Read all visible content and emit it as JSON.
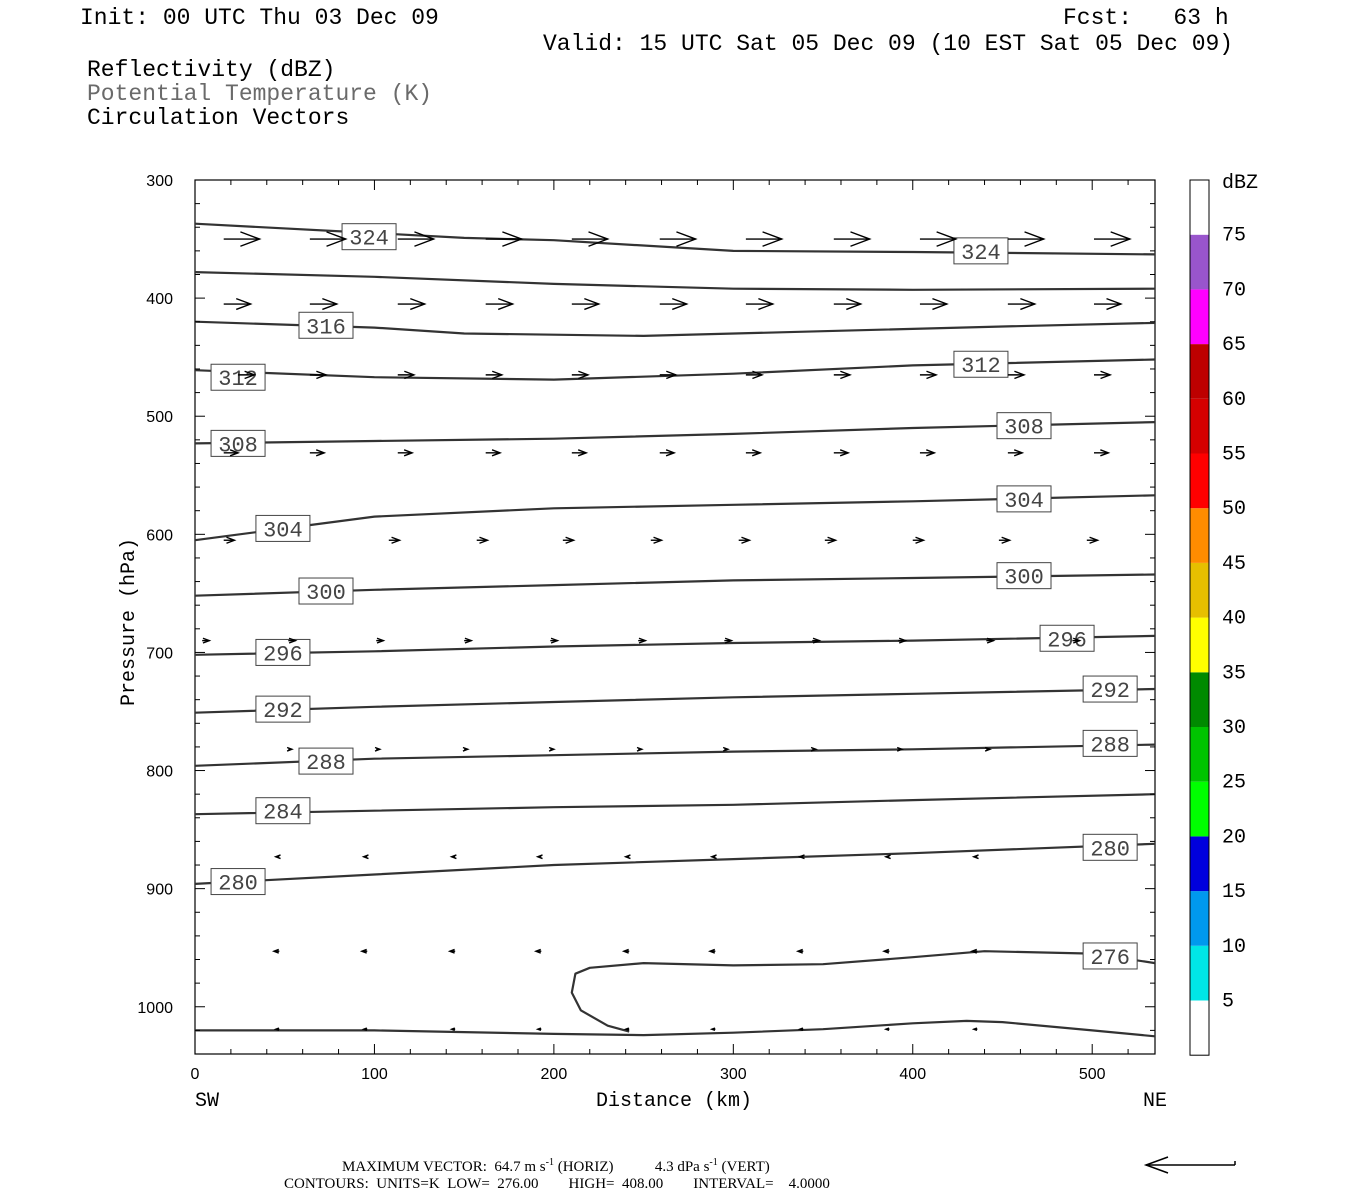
{
  "header": {
    "init": "Init: 00 UTC Thu 03 Dec 09",
    "fcst": "Fcst:   63 h",
    "valid": "Valid: 15 UTC Sat 05 Dec 09 (10 EST Sat 05 Dec 09)",
    "fields": [
      "Reflectivity (dBZ)",
      "Potential Temperature (K)",
      "Circulation Vectors"
    ]
  },
  "footer": {
    "max_vector": "MAXIMUM VECTOR:  64.7 m s",
    "horiz": "(HORIZ)",
    "vert_value": "4.3 dPa s",
    "vert": "(VERT)",
    "exponent": "-1",
    "contours": "CONTOURS:  UNITS=K  LOW=  276.00        HIGH=  408.00        INTERVAL=    4.0000"
  },
  "colorbar": {
    "unit": "dBZ",
    "levels": [
      5,
      10,
      15,
      20,
      25,
      30,
      35,
      40,
      45,
      50,
      55,
      60,
      65,
      70,
      75
    ],
    "colors": [
      "#ffffff",
      "#00e6e6",
      "#0099ee",
      "#0000dd",
      "#00ff00",
      "#00c400",
      "#008a00",
      "#ffff00",
      "#e6bf00",
      "#ff8c00",
      "#ff0000",
      "#d50000",
      "#bd0000",
      "#ff00ff",
      "#9955cc",
      "#ffffff"
    ]
  },
  "chart_data": {
    "type": "cross-section",
    "xlabel": "Distance (km)",
    "ylabel": "Pressure (hPa)",
    "x_ticks": [
      0,
      100,
      200,
      300,
      400,
      500
    ],
    "y_ticks": [
      300,
      400,
      500,
      600,
      700,
      800,
      900,
      1000
    ],
    "xlim": [
      0,
      535
    ],
    "ylim": [
      300,
      1040
    ],
    "x_end_labels": {
      "left": "SW",
      "right": "NE"
    },
    "contours": [
      {
        "level": 324,
        "points": [
          [
            0,
            337
          ],
          [
            100,
            345
          ],
          [
            150,
            349
          ],
          [
            200,
            351
          ],
          [
            300,
            360
          ],
          [
            400,
            361
          ],
          [
            535,
            363
          ]
        ],
        "labels": [
          [
            97,
            348
          ],
          [
            438,
            360
          ]
        ]
      },
      {
        "level": 320,
        "points": [
          [
            0,
            378
          ],
          [
            100,
            382
          ],
          [
            200,
            388
          ],
          [
            300,
            392
          ],
          [
            400,
            393
          ],
          [
            535,
            392
          ]
        ],
        "labels": []
      },
      {
        "level": 316,
        "points": [
          [
            0,
            420
          ],
          [
            100,
            425
          ],
          [
            150,
            430
          ],
          [
            250,
            432
          ],
          [
            350,
            428
          ],
          [
            450,
            424
          ],
          [
            535,
            421
          ]
        ],
        "labels": [
          [
            73,
            423
          ]
        ]
      },
      {
        "level": 312,
        "points": [
          [
            0,
            461
          ],
          [
            100,
            467
          ],
          [
            200,
            469
          ],
          [
            300,
            464
          ],
          [
            400,
            457
          ],
          [
            535,
            452
          ]
        ],
        "labels": [
          [
            24,
            467
          ],
          [
            438,
            456
          ]
        ]
      },
      {
        "level": 308,
        "points": [
          [
            0,
            523
          ],
          [
            100,
            521
          ],
          [
            200,
            519
          ],
          [
            300,
            515
          ],
          [
            400,
            510
          ],
          [
            535,
            505
          ]
        ],
        "labels": [
          [
            24,
            523
          ],
          [
            462,
            508
          ]
        ]
      },
      {
        "level": 304,
        "points": [
          [
            0,
            605
          ],
          [
            50,
            595
          ],
          [
            100,
            585
          ],
          [
            200,
            578
          ],
          [
            300,
            575
          ],
          [
            400,
            572
          ],
          [
            535,
            567
          ]
        ],
        "labels": [
          [
            49,
            595
          ],
          [
            462,
            570
          ]
        ]
      },
      {
        "level": 300,
        "points": [
          [
            0,
            652
          ],
          [
            100,
            647
          ],
          [
            200,
            643
          ],
          [
            300,
            639
          ],
          [
            400,
            637
          ],
          [
            535,
            634
          ]
        ],
        "labels": [
          [
            73,
            648
          ],
          [
            462,
            635
          ]
        ]
      },
      {
        "level": 296,
        "points": [
          [
            0,
            702
          ],
          [
            100,
            699
          ],
          [
            200,
            695
          ],
          [
            300,
            692
          ],
          [
            400,
            690
          ],
          [
            535,
            686
          ]
        ],
        "labels": [
          [
            49,
            700
          ],
          [
            486,
            688
          ]
        ]
      },
      {
        "level": 292,
        "points": [
          [
            0,
            751
          ],
          [
            100,
            746
          ],
          [
            200,
            742
          ],
          [
            300,
            738
          ],
          [
            400,
            735
          ],
          [
            535,
            731
          ]
        ],
        "labels": [
          [
            49,
            748
          ],
          [
            510,
            731
          ]
        ]
      },
      {
        "level": 288,
        "points": [
          [
            0,
            796
          ],
          [
            100,
            790
          ],
          [
            200,
            787
          ],
          [
            300,
            784
          ],
          [
            400,
            782
          ],
          [
            535,
            778
          ]
        ],
        "labels": [
          [
            73,
            792
          ],
          [
            510,
            777
          ]
        ]
      },
      {
        "level": 284,
        "points": [
          [
            0,
            837
          ],
          [
            100,
            834
          ],
          [
            200,
            831
          ],
          [
            300,
            829
          ],
          [
            400,
            825
          ],
          [
            535,
            820
          ]
        ],
        "labels": [
          [
            49,
            834
          ]
        ]
      },
      {
        "level": 280,
        "points": [
          [
            0,
            896
          ],
          [
            100,
            888
          ],
          [
            200,
            880
          ],
          [
            300,
            875
          ],
          [
            400,
            870
          ],
          [
            535,
            862
          ]
        ],
        "labels": [
          [
            24,
            894
          ],
          [
            510,
            865
          ]
        ]
      },
      {
        "level": 276,
        "points": [
          [
            535,
            963
          ],
          [
            500,
            955
          ],
          [
            440,
            953
          ],
          [
            400,
            958
          ],
          [
            350,
            964
          ],
          [
            300,
            965
          ],
          [
            250,
            963
          ],
          [
            220,
            967
          ],
          [
            212,
            972
          ],
          [
            210,
            988
          ],
          [
            215,
            1003
          ],
          [
            230,
            1016
          ],
          [
            242,
            1021
          ]
        ],
        "labels": [
          [
            510,
            957
          ]
        ]
      },
      {
        "level": 276,
        "points": [
          [
            0,
            1020
          ],
          [
            100,
            1020
          ],
          [
            200,
            1023
          ],
          [
            250,
            1024
          ],
          [
            300,
            1022
          ],
          [
            350,
            1019
          ],
          [
            400,
            1014
          ],
          [
            430,
            1012
          ],
          [
            450,
            1013
          ],
          [
            500,
            1020
          ],
          [
            535,
            1025
          ]
        ],
        "labels": []
      }
    ],
    "vector_rows": [
      {
        "p": 350,
        "len": 20,
        "head": 12,
        "x": [
          16,
          64,
          113,
          162,
          210,
          259,
          307,
          356,
          404,
          453,
          501
        ]
      },
      {
        "p": 405,
        "len": 15,
        "head": 9,
        "x": [
          16,
          64,
          113,
          162,
          210,
          259,
          307,
          356,
          404,
          453,
          501
        ]
      },
      {
        "p": 465,
        "len": 9,
        "head": 6,
        "x": [
          24,
          64,
          113,
          162,
          210,
          259,
          307,
          356,
          404,
          453,
          501
        ]
      },
      {
        "p": 531,
        "len": 8,
        "head": 5,
        "x": [
          16,
          64,
          113,
          162,
          210,
          259,
          307,
          356,
          404,
          453,
          501
        ]
      },
      {
        "p": 605,
        "len": 6,
        "head": 5,
        "x": [
          16,
          108,
          157,
          205,
          254,
          303,
          351,
          400,
          448,
          497
        ]
      },
      {
        "p": 690,
        "len": 4,
        "head": 4,
        "x": [
          4,
          52,
          101,
          150,
          198,
          247,
          295,
          344,
          392,
          441,
          489
        ]
      },
      {
        "p": 782,
        "len": 2,
        "head": 3,
        "x": [
          52,
          101,
          150,
          198,
          247,
          295,
          344,
          392,
          441
        ]
      },
      {
        "p": 873,
        "len": -2,
        "head": 3,
        "x": [
          47,
          96,
          145,
          193,
          242,
          290,
          339,
          387,
          436
        ]
      },
      {
        "p": 953,
        "len": -3,
        "head": 3,
        "x": [
          47,
          96,
          145,
          193,
          242,
          290,
          339,
          387,
          436
        ]
      },
      {
        "p": 1019,
        "len": -2,
        "head": 2,
        "x": [
          47,
          96,
          145,
          193,
          242,
          290,
          339,
          387,
          436
        ]
      }
    ]
  }
}
